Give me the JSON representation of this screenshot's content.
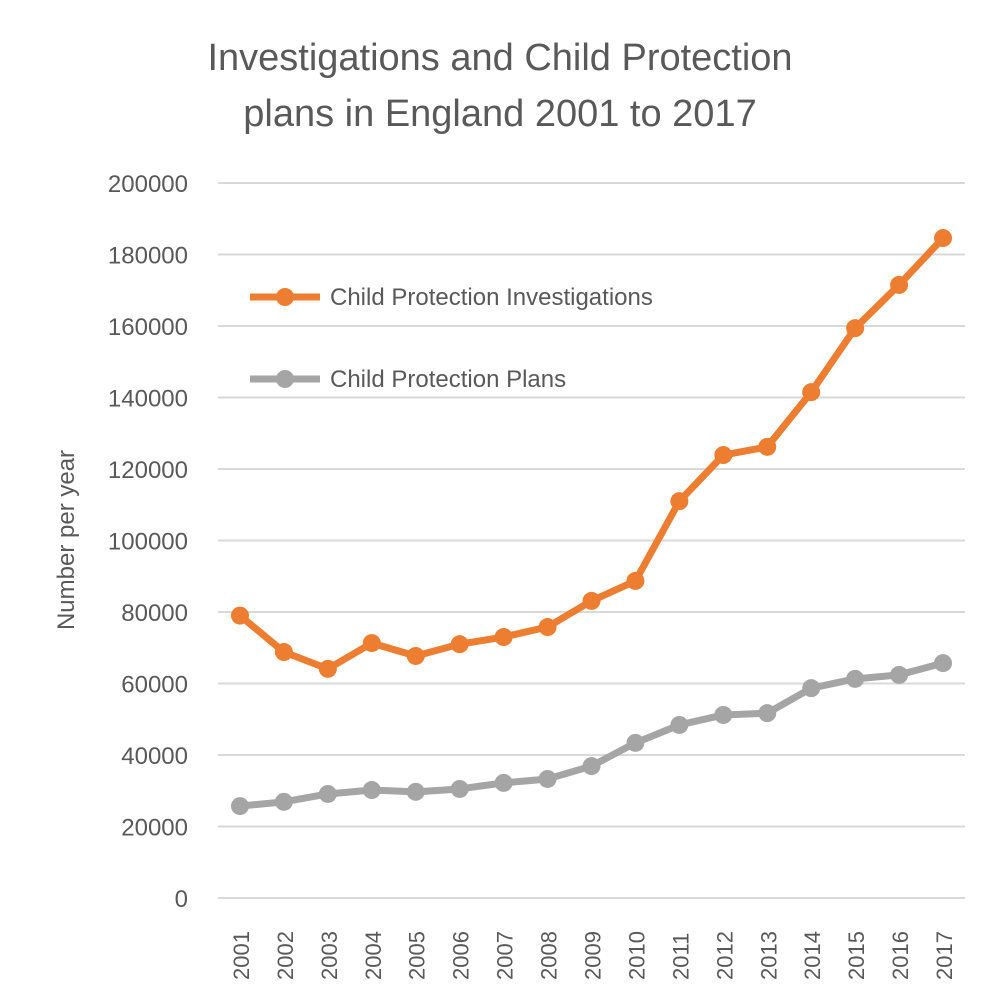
{
  "chart_data": {
    "type": "line",
    "title_lines": [
      "Investigations and Child Protection",
      "plans in England 2001 to 2017"
    ],
    "xlabel": "",
    "ylabel": "Number per year",
    "ylim": [
      0,
      200000
    ],
    "yticks": [
      0,
      20000,
      40000,
      60000,
      80000,
      100000,
      120000,
      140000,
      160000,
      180000,
      200000
    ],
    "grid": true,
    "legend_placement": "top-left",
    "categories": [
      "2001",
      "2002",
      "2003",
      "2004",
      "2005",
      "2006",
      "2007",
      "2008",
      "2009",
      "2010",
      "2011",
      "2012",
      "2013",
      "2014",
      "2015",
      "2016",
      "2017"
    ],
    "series": [
      {
        "name": "Child Protection Investigations",
        "color": "#ED7D31",
        "values": [
          79000,
          68800,
          64100,
          71300,
          67700,
          71000,
          73000,
          75800,
          83100,
          88700,
          111000,
          123900,
          126200,
          141500,
          159400,
          171500,
          184600
        ]
      },
      {
        "name": "Child Protection Plans",
        "color": "#A5A5A5",
        "values": [
          25700,
          26900,
          29100,
          30200,
          29700,
          30500,
          32200,
          33300,
          36900,
          43400,
          48400,
          51200,
          51700,
          58700,
          61300,
          62400,
          65700
        ]
      }
    ]
  }
}
